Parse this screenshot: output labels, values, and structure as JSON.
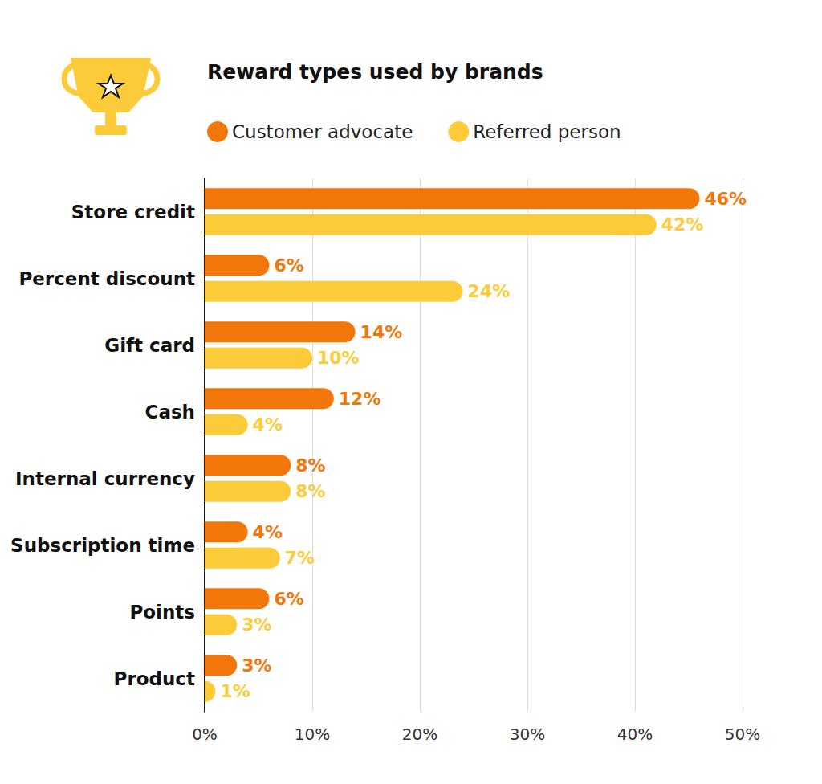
{
  "chart_data": {
    "type": "bar",
    "title": "Reward types used by brands",
    "orientation": "horizontal",
    "categories": [
      "Store credit",
      "Percent discount",
      "Gift card",
      "Cash",
      "Internal currency",
      "Subscription time",
      "Points",
      "Product"
    ],
    "series": [
      {
        "name": "Customer advocate",
        "color": "#F27708",
        "values": [
          46,
          6,
          14,
          12,
          8,
          4,
          6,
          3
        ],
        "value_labels": [
          "46%",
          "6%",
          "14%",
          "12%",
          "8%",
          "4%",
          "6%",
          "3%"
        ]
      },
      {
        "name": "Referred person",
        "color": "#FCCB3A",
        "values": [
          42,
          24,
          10,
          4,
          8,
          7,
          3,
          1
        ],
        "value_labels": [
          "42%",
          "24%",
          "10%",
          "4%",
          "8%",
          "7%",
          "3%",
          "1%"
        ]
      }
    ],
    "xlim": [
      0,
      50
    ],
    "xticks": [
      {
        "value": 0,
        "label": "0%"
      },
      {
        "value": 10,
        "label": "10%"
      },
      {
        "value": 20,
        "label": "20%"
      },
      {
        "value": 30,
        "label": "30%"
      },
      {
        "value": 40,
        "label": "40%"
      },
      {
        "value": 50,
        "label": "50%"
      }
    ],
    "grid": true,
    "legend": "top",
    "data_labels": true
  }
}
